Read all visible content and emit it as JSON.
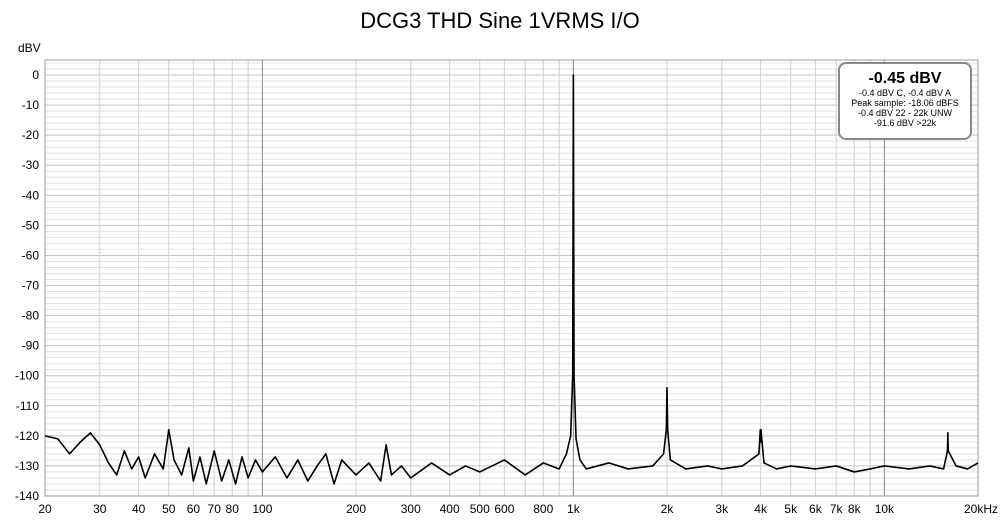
{
  "chart_data": {
    "type": "line",
    "title": "DCG3 THD Sine 1VRMS I/O",
    "ylabel": "dBV",
    "xunit": "Hz",
    "xscale": "log",
    "xlim": [
      20,
      20000
    ],
    "ylim": [
      -140,
      5
    ],
    "grid": true,
    "y_ticks": [
      0,
      -10,
      -20,
      -30,
      -40,
      -50,
      -60,
      -70,
      -80,
      -90,
      -100,
      -110,
      -120,
      -130,
      -140
    ],
    "y_tick_labels": [
      "0",
      "-10",
      "-20",
      "-30",
      "-40",
      "-50",
      "-60",
      "-70",
      "-80",
      "-90",
      "-100",
      "-110",
      "-120",
      "-130",
      "-140"
    ],
    "x_ticks": [
      20,
      30,
      40,
      50,
      60,
      70,
      80,
      100,
      200,
      300,
      400,
      500,
      600,
      800,
      1000,
      2000,
      3000,
      4000,
      5000,
      6000,
      7000,
      8000,
      10000,
      20000
    ],
    "x_tick_labels": [
      "20",
      "30",
      "40",
      "50",
      "60",
      "70",
      "80",
      "100",
      "200",
      "300",
      "400",
      "500",
      "600",
      "800",
      "1k",
      "2k",
      "3k",
      "4k",
      "5k",
      "6k",
      "7k",
      "8k",
      "10k",
      "20kHz"
    ],
    "series": [
      {
        "color": "#000000",
        "x": [
          20,
          22,
          24,
          26,
          28,
          30,
          32,
          34,
          36,
          38,
          40,
          42,
          45,
          48,
          50,
          52,
          55,
          58,
          60,
          63,
          66,
          70,
          74,
          78,
          82,
          86,
          90,
          95,
          100,
          110,
          120,
          130,
          140,
          150,
          160,
          170,
          180,
          200,
          220,
          240,
          250,
          260,
          280,
          300,
          350,
          400,
          450,
          500,
          600,
          700,
          800,
          900,
          950,
          980,
          995,
          1000,
          1005,
          1020,
          1050,
          1100,
          1300,
          1500,
          1800,
          1950,
          1990,
          2000,
          2010,
          2050,
          2300,
          2700,
          3000,
          3500,
          3950,
          3990,
          4000,
          4010,
          4100,
          4500,
          5000,
          6000,
          7000,
          8000,
          9000,
          10000,
          12000,
          14000,
          15500,
          15950,
          16000,
          16050,
          17000,
          18500,
          20000
        ],
        "y": [
          -120,
          -121,
          -126,
          -122,
          -119,
          -123,
          -129,
          -133,
          -125,
          -131,
          -127,
          -134,
          -126,
          -131,
          -118,
          -128,
          -133,
          -124,
          -135,
          -127,
          -136,
          -125,
          -135,
          -128,
          -136,
          -127,
          -134,
          -128,
          -132,
          -127,
          -134,
          -128,
          -135,
          -130,
          -126,
          -136,
          -128,
          -133,
          -129,
          -135,
          -123,
          -133,
          -130,
          -134,
          -129,
          -133,
          -130,
          -132,
          -128,
          -133,
          -129,
          -131,
          -126,
          -120,
          -100,
          0,
          -100,
          -121,
          -128,
          -131,
          -129,
          -131,
          -130,
          -126,
          -118,
          -104,
          -118,
          -128,
          -131,
          -130,
          -131,
          -130,
          -126,
          -118,
          -122,
          -118,
          -129,
          -131,
          -130,
          -131,
          -130,
          -132,
          -131,
          -130,
          -131,
          -130,
          -131,
          -125,
          -119,
          -125,
          -130,
          -131,
          -129
        ]
      }
    ]
  },
  "readout": {
    "main": "-0.45 dBV",
    "lines": [
      "-0.4 dBV C, -0.4 dBV A",
      "Peak sample: -18.06 dBFS",
      "-0.4 dBV 22 - 22k UNW",
      "-91.6 dBV >22k"
    ]
  }
}
